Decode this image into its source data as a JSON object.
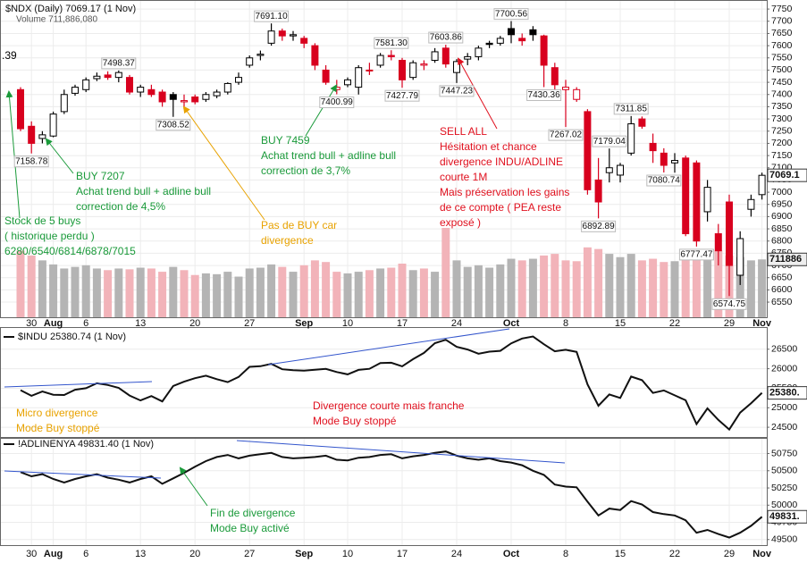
{
  "chart_data": [
    {
      "type": "candlestick",
      "title": "$NDX (Daily) 7069.17 (1 Nov)",
      "volume_title": "Volume 711,886,080",
      "categories": [
        null,
        "30",
        null,
        "Aug",
        null,
        null,
        "6",
        null,
        null,
        null,
        null,
        "13",
        null,
        null,
        null,
        null,
        "20",
        null,
        null,
        null,
        null,
        "27",
        null,
        null,
        null,
        null,
        "Sep",
        null,
        null,
        null,
        "10",
        null,
        null,
        null,
        null,
        "17",
        null,
        null,
        null,
        null,
        "24",
        null,
        null,
        null,
        null,
        "Oct",
        null,
        null,
        null,
        null,
        "8",
        null,
        null,
        null,
        null,
        "15",
        null,
        null,
        null,
        null,
        "22",
        null,
        null,
        null,
        null,
        "29",
        null,
        null,
        "Nov"
      ],
      "open": [
        7420,
        7270,
        7220,
        7230,
        7330,
        7405,
        7420,
        7465,
        7480,
        7470,
        7470,
        7410,
        7420,
        7410,
        7400,
        7370,
        7390,
        7380,
        7395,
        7410,
        7450,
        7520,
        7560,
        7610,
        7660,
        7640,
        7630,
        7600,
        7500,
        7420,
        7440,
        7430,
        7500,
        7520,
        7560,
        7540,
        7470,
        7520,
        7540,
        7590,
        7490,
        7545,
        7555,
        7610,
        7610,
        7670,
        7630,
        7665,
        7640,
        7510,
        7420,
        7380,
        7330,
        7050,
        7080,
        7070,
        7160,
        7300,
        7200,
        7160,
        7120,
        7140,
        7120,
        6920,
        6830,
        6960,
        6660,
        6930,
        6990
      ],
      "high": [
        7430,
        7290,
        7250,
        7330,
        7420,
        7440,
        7470,
        7490,
        7495,
        7498.37,
        7480,
        7440,
        7440,
        7420,
        7410,
        7400,
        7400,
        7410,
        7420,
        7450,
        7490,
        7560,
        7580,
        7691.1,
        7670,
        7660,
        7640,
        7610,
        7520,
        7460,
        7470,
        7520,
        7530,
        7570,
        7581.3,
        7550,
        7540,
        7540,
        7590,
        7603.86,
        7545,
        7570,
        7600,
        7620,
        7640,
        7700.56,
        7650,
        7680,
        7645,
        7530,
        7460,
        7430,
        7340,
        7140,
        7179.04,
        7120,
        7311.85,
        7310,
        7240,
        7180,
        7160,
        7150,
        7130,
        7050,
        6870,
        6990,
        6840,
        6990,
        7080
      ],
      "low": [
        7250,
        7158.78,
        7200,
        7225,
        7320,
        7395,
        7410,
        7455,
        7460,
        7450,
        7400,
        7390,
        7390,
        7350,
        7308.52,
        7340,
        7360,
        7370,
        7385,
        7400,
        7440,
        7510,
        7540,
        7600,
        7620,
        7620,
        7590,
        7500,
        7440,
        7400.99,
        7430,
        7400,
        7480,
        7510,
        7540,
        7427.79,
        7460,
        7500,
        7530,
        7510,
        7447.23,
        7520,
        7540,
        7590,
        7600,
        7610,
        7600,
        7620,
        7430.36,
        7410,
        7267.02,
        7370,
        6990,
        6892.89,
        7040,
        7040,
        7150,
        7260,
        7120,
        7080.74,
        7080,
        6820,
        6777.47,
        6880,
        6700,
        6574.75,
        6620,
        6900,
        6970
      ],
      "close": [
        7260,
        7200,
        7235,
        7320,
        7400,
        7430,
        7460,
        7475,
        7470,
        7490,
        7410,
        7430,
        7400,
        7370,
        7380,
        7375,
        7370,
        7400,
        7410,
        7445,
        7470,
        7550,
        7565,
        7660,
        7640,
        7645,
        7610,
        7520,
        7450,
        7430,
        7460,
        7510,
        7500,
        7560,
        7555,
        7460,
        7530,
        7525,
        7575,
        7525,
        7535,
        7555,
        7590,
        7605,
        7630,
        7645,
        7620,
        7645,
        7520,
        7440,
        7430,
        7420,
        7010,
        6960,
        7100,
        7110,
        7280,
        7270,
        7170,
        7110,
        7130,
        6830,
        6800,
        7020,
        6760,
        6700,
        6810,
        6970,
        7069.17
      ],
      "high_labels": [
        null,
        null,
        null,
        null,
        null,
        null,
        null,
        null,
        null,
        "7498.37",
        null,
        null,
        null,
        null,
        null,
        null,
        null,
        null,
        null,
        null,
        null,
        null,
        null,
        "7691.10",
        null,
        null,
        null,
        null,
        null,
        null,
        null,
        null,
        null,
        null,
        "7581.30",
        null,
        null,
        null,
        null,
        "7603.86",
        null,
        null,
        null,
        null,
        null,
        "7700.56",
        null,
        null,
        null,
        null,
        null,
        null,
        null,
        null,
        "7179.04",
        null,
        "7311.85",
        null,
        null,
        null,
        null,
        null,
        null,
        null,
        null,
        null,
        null,
        null,
        null
      ],
      "low_labels": [
        null,
        "7158.78",
        null,
        null,
        null,
        null,
        null,
        null,
        null,
        null,
        null,
        null,
        null,
        null,
        "7308.52",
        null,
        null,
        null,
        null,
        null,
        null,
        null,
        null,
        null,
        null,
        null,
        null,
        null,
        null,
        "7400.99",
        null,
        null,
        null,
        null,
        null,
        "7427.79",
        null,
        null,
        null,
        null,
        "7447.23",
        null,
        null,
        null,
        null,
        null,
        null,
        null,
        "7430.36",
        null,
        "7267.02",
        null,
        null,
        "6892.89",
        null,
        null,
        null,
        null,
        null,
        "7080.74",
        null,
        null,
        "6777.47",
        null,
        null,
        "6574.75",
        null,
        null,
        null
      ],
      "volume": [
        820000000,
        760000000,
        700000000,
        650000000,
        600000000,
        620000000,
        640000000,
        600000000,
        580000000,
        600000000,
        590000000,
        610000000,
        600000000,
        560000000,
        620000000,
        580000000,
        520000000,
        540000000,
        530000000,
        560000000,
        500000000,
        600000000,
        610000000,
        650000000,
        620000000,
        560000000,
        640000000,
        700000000,
        680000000,
        560000000,
        540000000,
        560000000,
        580000000,
        600000000,
        610000000,
        660000000,
        580000000,
        600000000,
        560000000,
        1100000000,
        700000000,
        620000000,
        640000000,
        610000000,
        650000000,
        720000000,
        700000000,
        720000000,
        760000000,
        780000000,
        700000000,
        690000000,
        860000000,
        840000000,
        780000000,
        740000000,
        780000000,
        700000000,
        720000000,
        680000000,
        690000000,
        780000000,
        820000000,
        830000000,
        820000000,
        760000000,
        740000000,
        700000000,
        711886080
      ],
      "up_color": "#000000",
      "down_color": "#d8001e",
      "volume_up_color": "#b4b4b4",
      "volume_down_color": "#f2b3b9",
      "ylim": [
        6488,
        7787
      ],
      "yticks": [
        6550,
        6600,
        6650,
        6700,
        6750,
        6800,
        6850,
        6900,
        6950,
        7000,
        7050,
        7100,
        7150,
        7200,
        7250,
        7300,
        7350,
        7400,
        7450,
        7500,
        7550,
        7600,
        7650,
        7700,
        7750
      ],
      "grid": true,
      "last_price_label": "7069.1",
      "last_volume_label": "711886",
      "annotations": [
        {
          "lines": [
            ".39"
          ],
          "color": "#000000"
        },
        {
          "lines": [
            "BUY 7207",
            "Achat trend bull + adline bull",
            "correction de 4,5%"
          ],
          "color": "#1a9a3a"
        },
        {
          "lines": [
            "Stock de 5 buys",
            "( historique perdu )",
            "6280/6540/6814/6878/7015"
          ],
          "color": "#1a9a3a"
        },
        {
          "lines": [
            "Pas de BUY car",
            "divergence"
          ],
          "color": "#e8a200"
        },
        {
          "lines": [
            "BUY 7459",
            "Achat trend bull + adline bull",
            "correction de 3,7%"
          ],
          "color": "#1a9a3a"
        },
        {
          "lines": [
            "SELL ALL",
            "Hésitation et chance",
            "divergence INDU/ADLINE",
            "courte 1M",
            "Mais préservation les gains",
            "de ce compte ( PEA reste",
            "exposé )"
          ],
          "color": "#e0101e"
        }
      ]
    },
    {
      "type": "line",
      "title": "$INDU 25380.74 (1 Nov)",
      "values": [
        25451,
        25307,
        25415,
        25333,
        25326,
        25463,
        25502,
        25628,
        25583,
        25509,
        25313,
        25187,
        25300,
        25162,
        25558,
        25669,
        25758,
        25822,
        25733,
        25656,
        25790,
        26049,
        26064,
        26124,
        25986,
        25964,
        25952,
        25974,
        25995,
        25916,
        25857,
        25971,
        25998,
        26145,
        26154,
        26062,
        26246,
        26405,
        26656,
        26743,
        26562,
        26492,
        26385,
        26439,
        26458,
        26651,
        26774,
        26828,
        26627,
        26447,
        26486,
        26430,
        25599,
        25052,
        25340,
        25250,
        25798,
        25706,
        25379,
        25444,
        25317,
        25191,
        24583,
        24984,
        24688,
        24443,
        24875,
        25116,
        25380.74
      ],
      "color": "#111111",
      "ylim": [
        24227,
        27068
      ],
      "yticks": [
        24500,
        25000,
        25500,
        26000,
        26500
      ],
      "grid": true,
      "last_label": "25380.",
      "annotations": [
        {
          "lines": [
            "Micro divergence",
            "Mode Buy stoppé"
          ],
          "color": "#e8a200"
        },
        {
          "lines": [
            "Divergence courte mais franche",
            "Mode Buy stoppé"
          ],
          "color": "#e0101e"
        }
      ]
    },
    {
      "type": "line",
      "title": "!ADLINENYA 49831.40 (1 Nov)",
      "categories": [
        null,
        "30",
        null,
        "Aug",
        null,
        null,
        "6",
        null,
        null,
        null,
        null,
        "13",
        null,
        null,
        null,
        null,
        "20",
        null,
        null,
        null,
        null,
        "27",
        null,
        null,
        null,
        null,
        "Sep",
        null,
        null,
        null,
        "10",
        null,
        null,
        null,
        null,
        "17",
        null,
        null,
        null,
        null,
        "24",
        null,
        null,
        null,
        null,
        "Oct",
        null,
        null,
        null,
        null,
        "8",
        null,
        null,
        null,
        null,
        "15",
        null,
        null,
        null,
        null,
        "22",
        null,
        null,
        null,
        null,
        "29",
        null,
        null,
        "Nov"
      ],
      "values": [
        50480,
        50420,
        50450,
        50380,
        50330,
        50380,
        50420,
        50450,
        50400,
        50370,
        50330,
        50380,
        50420,
        50310,
        50390,
        50470,
        50560,
        50640,
        50700,
        50730,
        50680,
        50720,
        50740,
        50760,
        50700,
        50680,
        50690,
        50700,
        50720,
        50660,
        50650,
        50690,
        50700,
        50730,
        50740,
        50680,
        50710,
        50730,
        50760,
        50780,
        50720,
        50680,
        50660,
        50680,
        50640,
        50620,
        50580,
        50500,
        50440,
        50300,
        50270,
        50260,
        50050,
        49850,
        49950,
        49930,
        50060,
        50010,
        49900,
        49870,
        49850,
        49780,
        49600,
        49640,
        49580,
        49530,
        49600,
        49700,
        49831.4
      ],
      "color": "#111111",
      "ylim": [
        49406,
        50978
      ],
      "yticks": [
        49500,
        49750,
        50000,
        50250,
        50500,
        50750
      ],
      "grid": true,
      "last_label": "49831.",
      "annotations": [
        {
          "lines": [
            "Fin de divergence",
            "Mode Buy activé"
          ],
          "color": "#1a9a3a"
        }
      ]
    }
  ]
}
